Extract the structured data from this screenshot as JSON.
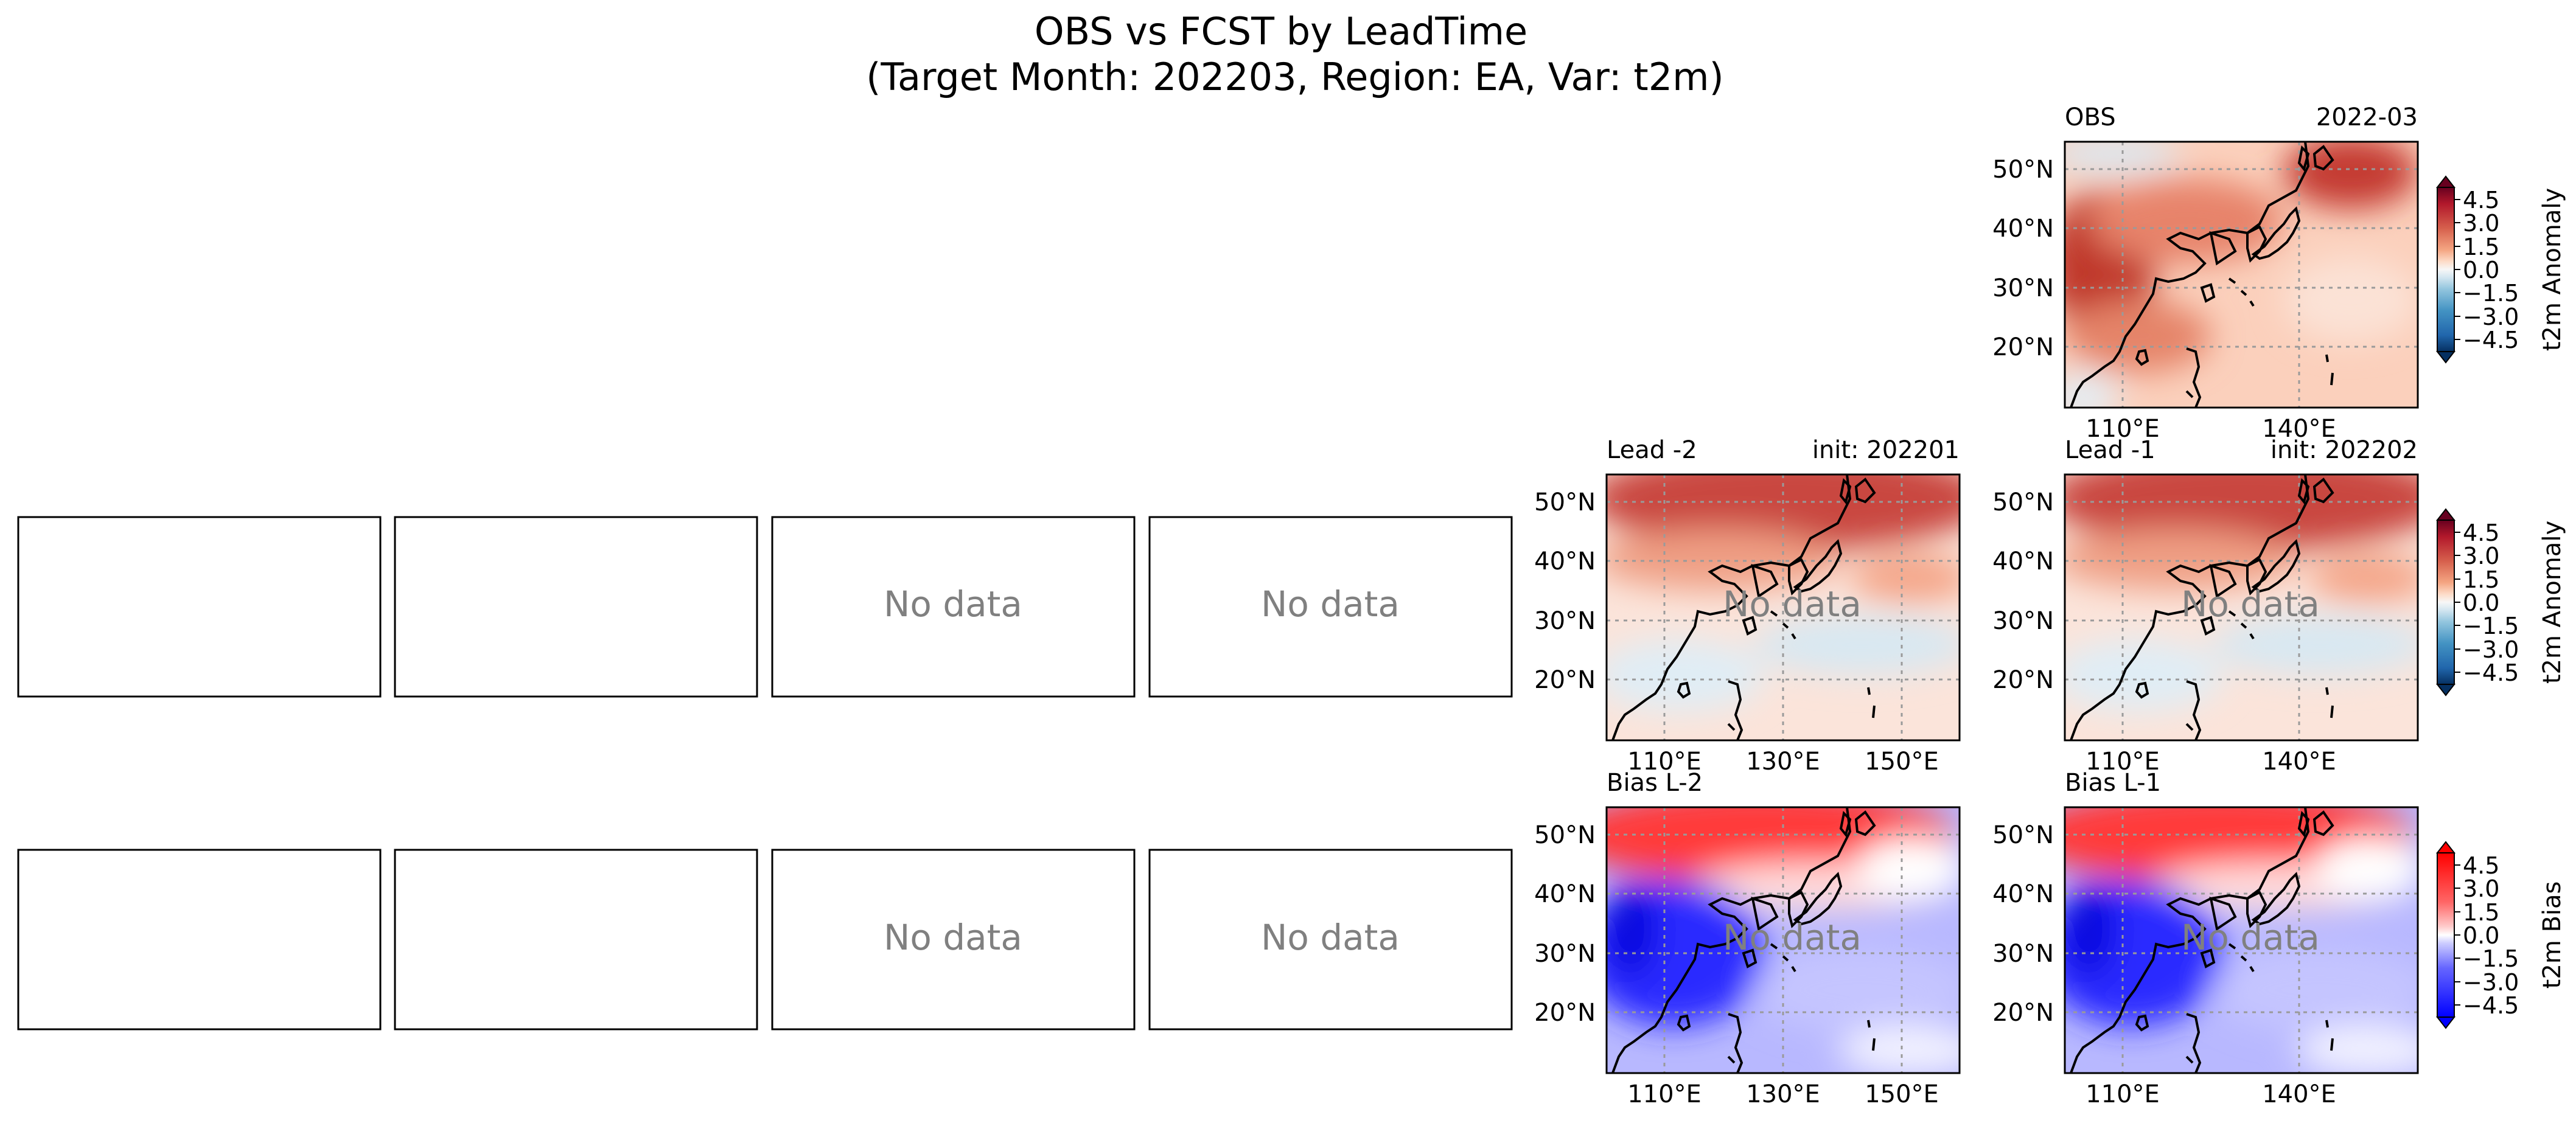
{
  "title": "OBS vs FCST by LeadTime",
  "subtitle": "(Target Month: 202203, Region: EA, Var: t2m)",
  "no_data_label": "No data",
  "colors": {
    "anomaly_cmap": [
      "#053061",
      "#2166ac",
      "#4393c3",
      "#92c5de",
      "#d1e5f0",
      "#f7f7f7",
      "#fddbc7",
      "#f4a582",
      "#d6604d",
      "#b2182b",
      "#67001f"
    ],
    "bias_cmap": [
      "#0000ff",
      "#6666ff",
      "#ccccff",
      "#ffffff",
      "#ffcccc",
      "#ff6666",
      "#ff0000"
    ],
    "no_data_text": "#808080",
    "grid": "#9a9a9a"
  },
  "panels": {
    "obs": {
      "left_title": "OBS",
      "right_title": "2022-03",
      "y_ticks": [
        "50°N",
        "40°N",
        "30°N",
        "20°N"
      ],
      "x_ticks": [
        "110°E",
        "140°E"
      ]
    },
    "lead_m2": {
      "left_title": "Lead -2",
      "right_title": "init: 202201",
      "y_ticks": [
        "50°N",
        "40°N",
        "30°N",
        "20°N"
      ],
      "x_ticks": [
        "110°E",
        "130°E",
        "150°E"
      ]
    },
    "lead_m1": {
      "left_title": "Lead -1",
      "right_title": "init: 202202",
      "y_ticks": [
        "50°N",
        "40°N",
        "30°N",
        "20°N"
      ],
      "x_ticks": [
        "110°E",
        "140°E"
      ]
    },
    "bias_m2": {
      "left_title": "Bias L-2",
      "right_title": "",
      "y_ticks": [
        "50°N",
        "40°N",
        "30°N",
        "20°N"
      ],
      "x_ticks": [
        "110°E",
        "130°E",
        "150°E"
      ]
    },
    "bias_m1": {
      "left_title": "Bias L-1",
      "right_title": "",
      "y_ticks": [
        "50°N",
        "40°N",
        "30°N",
        "20°N"
      ],
      "x_ticks": [
        "110°E",
        "140°E"
      ]
    }
  },
  "colorbars": {
    "obs": {
      "label": "t2m Anomaly",
      "ticks": [
        "4.5",
        "3.0",
        "1.5",
        "0.0",
        "−1.5",
        "−3.0",
        "−4.5"
      ]
    },
    "fcst": {
      "label": "t2m Anomaly",
      "ticks": [
        "4.5",
        "3.0",
        "1.5",
        "0.0",
        "−1.5",
        "−3.0",
        "−4.5"
      ]
    },
    "bias": {
      "label": "t2m Bias",
      "ticks": [
        "4.5",
        "3.0",
        "1.5",
        "0.0",
        "−1.5",
        "−3.0",
        "−4.5"
      ]
    }
  },
  "chart_data": {
    "type": "heatmap",
    "title": "OBS vs FCST by LeadTime",
    "subtitle": "(Target Month: 202203, Region: EA, Var: t2m)",
    "panels": [
      "OBS",
      "Lead -2",
      "Lead -1",
      "Bias L-2",
      "Bias L-1"
    ],
    "colorbar_range": [
      -4.5,
      4.5
    ],
    "colorbar_ticks": [
      -4.5,
      -3.0,
      -1.5,
      0.0,
      1.5,
      3.0,
      4.5
    ],
    "obs_map": {
      "latitudes": [
        50,
        40,
        30,
        20
      ],
      "longitudes": [
        110,
        140
      ]
    },
    "lead_m2_map": {
      "latitudes": [
        50,
        40,
        30,
        20
      ],
      "longitudes": [
        110,
        130,
        150
      ]
    },
    "empty_panels_per_row": 4,
    "no_data_panels_per_row": 2
  }
}
